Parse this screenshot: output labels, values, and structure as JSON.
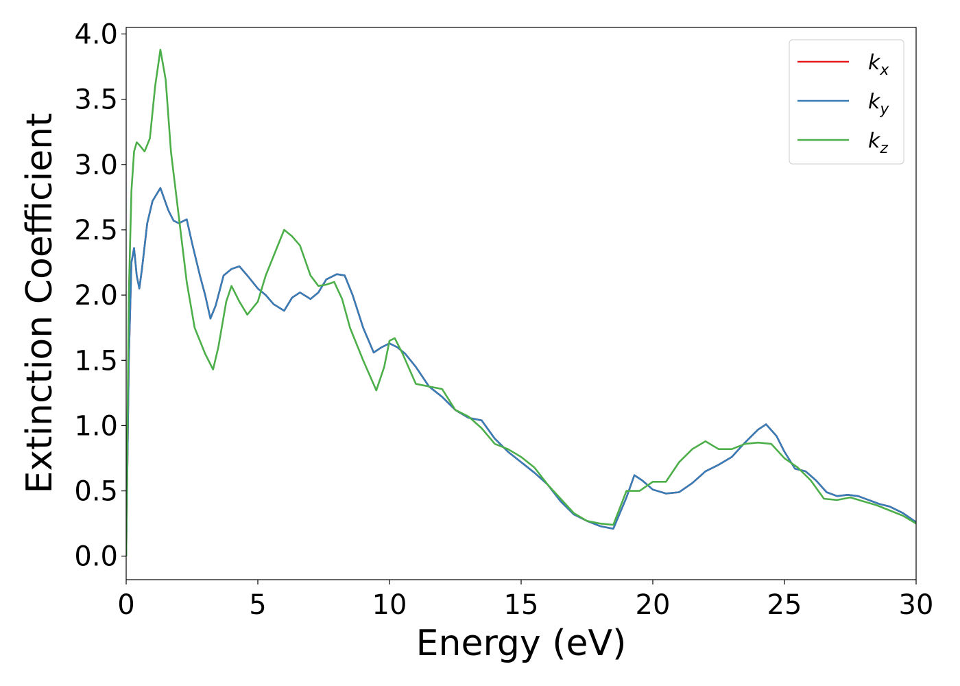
{
  "chart_data": {
    "type": "line",
    "xlabel": "Energy (eV)",
    "ylabel": "Extinction Coefficient",
    "xlim": [
      0,
      30
    ],
    "ylim": [
      -0.18,
      4.05
    ],
    "x_ticks": [
      "0",
      "5",
      "10",
      "15",
      "20",
      "25",
      "30"
    ],
    "y_ticks": [
      "0.0",
      "0.5",
      "1.0",
      "1.5",
      "2.0",
      "2.5",
      "3.0",
      "3.5",
      "4.0"
    ],
    "grid": false,
    "legend_position": "top-right",
    "series": [
      {
        "name": "x",
        "legend_base": "k",
        "legend_sub": "x",
        "color": "#e41a1c",
        "x": [
          0,
          0.1,
          0.2,
          0.3,
          0.4,
          0.5,
          0.6,
          0.8,
          1.0,
          1.3,
          1.6,
          1.8,
          2.0,
          2.3,
          2.5,
          2.8,
          3.0,
          3.2,
          3.4,
          3.7,
          4.0,
          4.3,
          4.6,
          5.0,
          5.3,
          5.6,
          6.0,
          6.3,
          6.6,
          7.0,
          7.3,
          7.6,
          8.0,
          8.3,
          8.6,
          9.0,
          9.4,
          9.7,
          10.0,
          10.3,
          10.6,
          11.0,
          11.5,
          12.0,
          12.5,
          13.0,
          13.5,
          14.0,
          14.5,
          15.0,
          15.5,
          16.0,
          16.5,
          17.0,
          17.5,
          18.0,
          18.5,
          19.0,
          19.3,
          19.6,
          20.0,
          20.5,
          21.0,
          21.5,
          22.0,
          22.5,
          23.0,
          23.5,
          24.0,
          24.3,
          24.7,
          25.0,
          25.4,
          25.8,
          26.2,
          26.6,
          27.0,
          27.4,
          27.8,
          28.2,
          28.6,
          29.0,
          29.5,
          30.0
        ],
        "y": [
          0.0,
          1.5,
          2.25,
          2.36,
          2.15,
          2.05,
          2.2,
          2.55,
          2.72,
          2.82,
          2.65,
          2.57,
          2.55,
          2.58,
          2.4,
          2.15,
          2.0,
          1.82,
          1.92,
          2.15,
          2.2,
          2.22,
          2.15,
          2.05,
          2.0,
          1.93,
          1.88,
          1.98,
          2.02,
          1.97,
          2.02,
          2.12,
          2.16,
          2.15,
          2.0,
          1.75,
          1.56,
          1.6,
          1.63,
          1.6,
          1.55,
          1.45,
          1.3,
          1.22,
          1.12,
          1.06,
          1.04,
          0.9,
          0.8,
          0.72,
          0.64,
          0.55,
          0.42,
          0.32,
          0.27,
          0.23,
          0.21,
          0.45,
          0.62,
          0.58,
          0.51,
          0.48,
          0.49,
          0.56,
          0.65,
          0.7,
          0.76,
          0.87,
          0.97,
          1.01,
          0.92,
          0.8,
          0.67,
          0.65,
          0.58,
          0.49,
          0.46,
          0.47,
          0.46,
          0.43,
          0.4,
          0.38,
          0.33,
          0.26
        ]
      },
      {
        "name": "y",
        "legend_base": "k",
        "legend_sub": "y",
        "color": "#377eb8",
        "x": [
          0,
          0.1,
          0.2,
          0.3,
          0.4,
          0.5,
          0.6,
          0.8,
          1.0,
          1.3,
          1.6,
          1.8,
          2.0,
          2.3,
          2.5,
          2.8,
          3.0,
          3.2,
          3.4,
          3.7,
          4.0,
          4.3,
          4.6,
          5.0,
          5.3,
          5.6,
          6.0,
          6.3,
          6.6,
          7.0,
          7.3,
          7.6,
          8.0,
          8.3,
          8.6,
          9.0,
          9.4,
          9.7,
          10.0,
          10.3,
          10.6,
          11.0,
          11.5,
          12.0,
          12.5,
          13.0,
          13.5,
          14.0,
          14.5,
          15.0,
          15.5,
          16.0,
          16.5,
          17.0,
          17.5,
          18.0,
          18.5,
          19.0,
          19.3,
          19.6,
          20.0,
          20.5,
          21.0,
          21.5,
          22.0,
          22.5,
          23.0,
          23.5,
          24.0,
          24.3,
          24.7,
          25.0,
          25.4,
          25.8,
          26.2,
          26.6,
          27.0,
          27.4,
          27.8,
          28.2,
          28.6,
          29.0,
          29.5,
          30.0
        ],
        "y": [
          0.0,
          1.5,
          2.25,
          2.36,
          2.15,
          2.05,
          2.2,
          2.55,
          2.72,
          2.82,
          2.65,
          2.57,
          2.55,
          2.58,
          2.4,
          2.15,
          2.0,
          1.82,
          1.92,
          2.15,
          2.2,
          2.22,
          2.15,
          2.05,
          2.0,
          1.93,
          1.88,
          1.98,
          2.02,
          1.97,
          2.02,
          2.12,
          2.16,
          2.15,
          2.0,
          1.75,
          1.56,
          1.6,
          1.63,
          1.6,
          1.55,
          1.45,
          1.3,
          1.22,
          1.12,
          1.06,
          1.04,
          0.9,
          0.8,
          0.72,
          0.64,
          0.55,
          0.42,
          0.32,
          0.27,
          0.23,
          0.21,
          0.45,
          0.62,
          0.58,
          0.51,
          0.48,
          0.49,
          0.56,
          0.65,
          0.7,
          0.76,
          0.87,
          0.97,
          1.01,
          0.92,
          0.8,
          0.67,
          0.65,
          0.58,
          0.49,
          0.46,
          0.47,
          0.46,
          0.43,
          0.4,
          0.38,
          0.33,
          0.26
        ]
      },
      {
        "name": "z",
        "legend_base": "k",
        "legend_sub": "z",
        "color": "#4daf4a",
        "x": [
          0,
          0.1,
          0.2,
          0.3,
          0.4,
          0.5,
          0.7,
          0.9,
          1.1,
          1.3,
          1.5,
          1.7,
          2.0,
          2.3,
          2.6,
          3.0,
          3.3,
          3.5,
          3.8,
          4.0,
          4.3,
          4.6,
          5.0,
          5.3,
          5.6,
          6.0,
          6.3,
          6.6,
          7.0,
          7.3,
          7.6,
          7.9,
          8.2,
          8.5,
          9.0,
          9.5,
          9.8,
          10.0,
          10.2,
          10.5,
          11.0,
          11.5,
          12.0,
          12.5,
          13.0,
          13.5,
          14.0,
          14.5,
          15.0,
          15.5,
          16.0,
          16.5,
          17.0,
          17.5,
          18.0,
          18.5,
          19.0,
          19.5,
          20.0,
          20.5,
          21.0,
          21.5,
          22.0,
          22.5,
          23.0,
          23.5,
          24.0,
          24.5,
          25.0,
          25.5,
          26.0,
          26.5,
          27.0,
          27.5,
          28.0,
          28.5,
          29.0,
          29.5,
          30.0
        ],
        "y": [
          0.0,
          2.0,
          2.8,
          3.1,
          3.17,
          3.15,
          3.1,
          3.2,
          3.6,
          3.88,
          3.65,
          3.1,
          2.6,
          2.1,
          1.75,
          1.55,
          1.43,
          1.6,
          1.95,
          2.07,
          1.95,
          1.85,
          1.95,
          2.15,
          2.3,
          2.5,
          2.45,
          2.38,
          2.15,
          2.07,
          2.08,
          2.1,
          1.97,
          1.75,
          1.5,
          1.27,
          1.45,
          1.65,
          1.67,
          1.55,
          1.32,
          1.3,
          1.28,
          1.12,
          1.07,
          0.98,
          0.86,
          0.82,
          0.76,
          0.68,
          0.55,
          0.44,
          0.33,
          0.27,
          0.25,
          0.24,
          0.5,
          0.5,
          0.57,
          0.57,
          0.72,
          0.82,
          0.88,
          0.82,
          0.82,
          0.86,
          0.87,
          0.86,
          0.75,
          0.68,
          0.58,
          0.44,
          0.43,
          0.45,
          0.42,
          0.39,
          0.35,
          0.31,
          0.25
        ]
      }
    ]
  }
}
